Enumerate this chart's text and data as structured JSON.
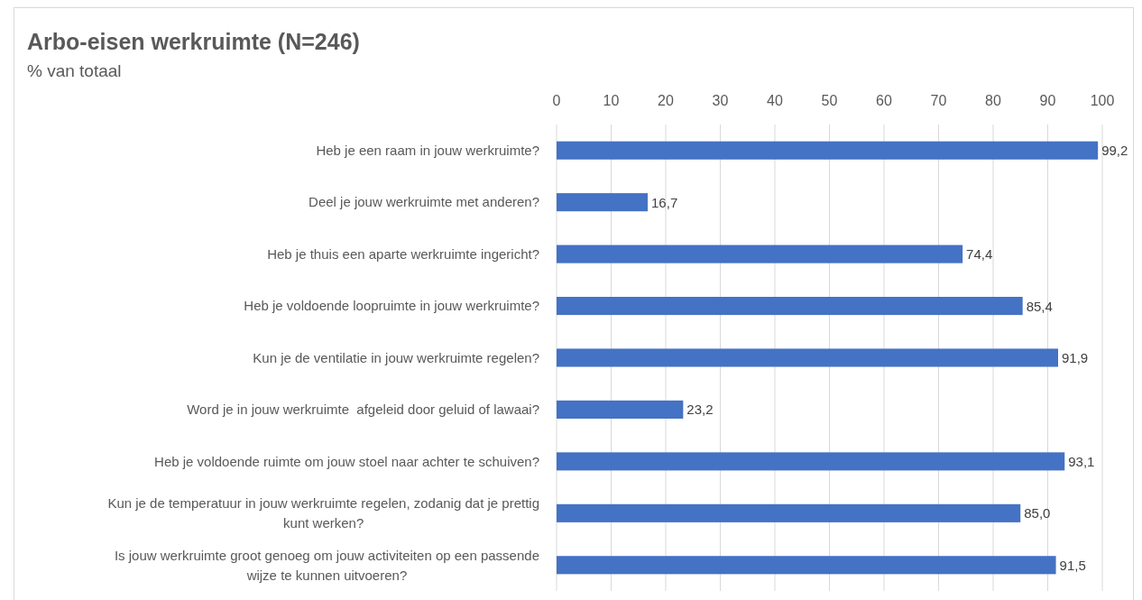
{
  "chart_data": {
    "type": "bar",
    "orientation": "horizontal",
    "title": "Arbo-eisen werkruimte (N=246)",
    "subtitle": "% van totaal",
    "categories": [
      "Heb je een raam in jouw werkruimte?",
      "Deel je jouw werkruimte met anderen?",
      "Heb je thuis een aparte werkruimte ingericht?",
      "Heb je voldoende loopruimte in jouw werkruimte?",
      "Kun je de ventilatie in jouw werkruimte regelen?",
      "Word je in jouw werkruimte  afgeleid door geluid of lawaai?",
      "Heb je voldoende ruimte om jouw stoel naar achter te schuiven?",
      "Kun je de temperatuur in jouw werkruimte regelen, zodanig dat je prettig kunt werken?",
      "Is jouw werkruimte groot genoeg om jouw activiteiten op een passende wijze te kunnen uitvoeren?"
    ],
    "values": [
      99.2,
      16.7,
      74.4,
      85.4,
      91.9,
      23.2,
      93.1,
      85.0,
      91.5
    ],
    "value_labels": [
      "99,2",
      "16,7",
      "74,4",
      "85,4",
      "91,9",
      "23,2",
      "93,1",
      "85,0",
      "91,5"
    ],
    "color": "#4472c4",
    "xlim": [
      0,
      100
    ],
    "xticks": [
      0,
      10,
      20,
      30,
      40,
      50,
      60,
      70,
      80,
      90,
      100
    ],
    "grid": "x"
  }
}
